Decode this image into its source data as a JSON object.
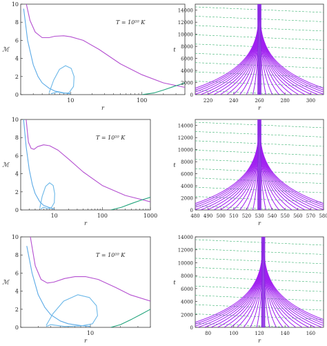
{
  "chart_data": [
    {
      "type": "line",
      "xlabel": "r",
      "ylabel": "ℳ",
      "annotation": "T = 10¹⁰ K",
      "xscale": "log",
      "xlim": [
        2,
        400
      ],
      "ylim": [
        0,
        10
      ],
      "yticks": [
        "0",
        "2",
        "4",
        "6",
        "8",
        "10"
      ],
      "xticks": [
        {
          "v": 10,
          "label": "10"
        },
        {
          "v": 100,
          "label": "100"
        }
      ],
      "grid": false,
      "colors": {
        "left_branch": "#5aa9e6",
        "right_branch": "#b44fd0",
        "loop": "#6ab7e8",
        "green": "#1fa37a"
      },
      "series": [
        {
          "values": [
            [
              2.2,
              9.5
            ],
            [
              2.5,
              6.0
            ],
            [
              3.0,
              3.3
            ],
            [
              3.5,
              2.0
            ],
            [
              4.0,
              1.3
            ],
            [
              5.0,
              0.7
            ],
            [
              6.0,
              0.4
            ],
            [
              8.0,
              0.2
            ],
            [
              10.0,
              0.1
            ]
          ]
        },
        {
          "values": [
            [
              2.4,
              10.0
            ],
            [
              2.7,
              8.2
            ],
            [
              3.2,
              6.9
            ],
            [
              4.0,
              6.3
            ],
            [
              5.0,
              6.3
            ],
            [
              6.0,
              6.45
            ],
            [
              8.0,
              6.5
            ],
            [
              10.0,
              6.4
            ],
            [
              15.0,
              6.0
            ],
            [
              25.0,
              5.0
            ],
            [
              50.0,
              3.4
            ],
            [
              100.0,
              2.2
            ],
            [
              200.0,
              1.3
            ],
            [
              400.0,
              0.8
            ]
          ]
        },
        {
          "values": [
            [
              5.0,
              0.2
            ],
            [
              5.8,
              1.6
            ],
            [
              7.0,
              2.8
            ],
            [
              8.5,
              3.2
            ],
            [
              10.2,
              2.9
            ],
            [
              11.2,
              2.0
            ],
            [
              11.0,
              0.9
            ],
            [
              9.5,
              0.2
            ],
            [
              8.0,
              0.15
            ],
            [
              6.5,
              0.3
            ],
            [
              5.3,
              0.1
            ]
          ]
        },
        {
          "values": [
            [
              100.0,
              0.0
            ],
            [
              150.0,
              0.2
            ],
            [
              200.0,
              0.5
            ],
            [
              280.0,
              0.9
            ],
            [
              400.0,
              1.3
            ]
          ]
        }
      ]
    },
    {
      "type": "line",
      "xlabel": "r",
      "ylabel": "t",
      "xlim": [
        210,
        310
      ],
      "ylim": [
        0,
        15000
      ],
      "xticks": [
        "220",
        "240",
        "260",
        "280",
        "300"
      ],
      "yticks": [
        "0",
        "2000",
        "4000",
        "6000",
        "8000",
        "10000",
        "12000",
        "14000"
      ],
      "center": 260,
      "description_color": {
        "characteristics": "#a020f0",
        "isochrones": "#3cb371"
      }
    },
    {
      "type": "line",
      "xlabel": "r",
      "ylabel": "ℳ",
      "annotation": "T = 10¹⁰ K",
      "xscale": "log",
      "xlim": [
        2,
        1000
      ],
      "ylim": [
        0,
        10
      ],
      "yticks": [
        "0",
        "2",
        "4",
        "6",
        "8",
        "10"
      ],
      "xticks": [
        {
          "v": 10,
          "label": "10"
        },
        {
          "v": 100,
          "label": "100"
        },
        {
          "v": 1000,
          "label": "1000"
        }
      ],
      "series": [
        {
          "values": [
            [
              2.3,
              10.0
            ],
            [
              2.6,
              7.0
            ],
            [
              3.0,
              4.5
            ],
            [
              3.5,
              2.8
            ],
            [
              4.0,
              1.8
            ],
            [
              5.0,
              0.9
            ],
            [
              6.0,
              0.5
            ],
            [
              8.0,
              0.25
            ],
            [
              10.0,
              0.1
            ]
          ]
        },
        {
          "values": [
            [
              2.6,
              10.0
            ],
            [
              2.9,
              7.5
            ],
            [
              3.3,
              6.8
            ],
            [
              3.8,
              6.7
            ],
            [
              4.5,
              7.0
            ],
            [
              6.0,
              7.2
            ],
            [
              8.0,
              7.1
            ],
            [
              12.0,
              6.6
            ],
            [
              20.0,
              5.6
            ],
            [
              40.0,
              4.2
            ],
            [
              100.0,
              2.7
            ],
            [
              300.0,
              1.6
            ],
            [
              1000.0,
              0.9
            ]
          ]
        },
        {
          "values": [
            [
              5.0,
              0.2
            ],
            [
              5.6,
              1.5
            ],
            [
              6.6,
              2.6
            ],
            [
              8.0,
              3.0
            ],
            [
              9.5,
              2.7
            ],
            [
              10.2,
              1.8
            ],
            [
              10.0,
              0.8
            ],
            [
              8.6,
              0.2
            ],
            [
              7.2,
              0.15
            ],
            [
              6.0,
              0.3
            ],
            [
              5.2,
              0.1
            ]
          ]
        },
        {
          "values": [
            [
              150.0,
              0.0
            ],
            [
              250.0,
              0.3
            ],
            [
              400.0,
              0.7
            ],
            [
              650.0,
              1.1
            ],
            [
              1000.0,
              1.4
            ]
          ]
        }
      ]
    },
    {
      "type": "line",
      "xlabel": "r",
      "ylabel": "t",
      "xlim": [
        480,
        580
      ],
      "ylim": [
        0,
        15000
      ],
      "xticks": [
        "480",
        "490",
        "500",
        "510",
        "520",
        "530",
        "540",
        "550",
        "560",
        "570",
        "580"
      ],
      "yticks": [
        "0",
        "2000",
        "4000",
        "6000",
        "8000",
        "10000",
        "12000",
        "14000"
      ],
      "center": 530
    },
    {
      "type": "line",
      "xlabel": "r",
      "ylabel": "ℳ",
      "annotation": "T = 10¹⁰ K",
      "xscale": "log",
      "xlim": [
        2,
        40
      ],
      "ylim": [
        0,
        10
      ],
      "yticks": [
        "0",
        "2",
        "4",
        "6",
        "8",
        "10"
      ],
      "xticks": [
        {
          "v": 10,
          "label": "10"
        }
      ],
      "series": [
        {
          "values": [
            [
              2.3,
              9.0
            ],
            [
              2.6,
              6.0
            ],
            [
              3.0,
              3.6
            ],
            [
              3.5,
              2.2
            ],
            [
              4.0,
              1.4
            ],
            [
              5.0,
              0.7
            ],
            [
              6.0,
              0.4
            ],
            [
              8.0,
              0.2
            ],
            [
              10.0,
              0.1
            ]
          ]
        },
        {
          "values": [
            [
              2.5,
              10.0
            ],
            [
              2.8,
              6.8
            ],
            [
              3.2,
              5.3
            ],
            [
              3.7,
              4.9
            ],
            [
              4.3,
              5.0
            ],
            [
              5.5,
              5.4
            ],
            [
              7.0,
              5.6
            ],
            [
              9.0,
              5.6
            ],
            [
              12.0,
              5.3
            ],
            [
              18.0,
              4.4
            ],
            [
              25.0,
              3.6
            ],
            [
              40.0,
              2.9
            ]
          ]
        },
        {
          "values": [
            [
              3.6,
              0.2
            ],
            [
              4.2,
              1.5
            ],
            [
              5.4,
              2.9
            ],
            [
              7.5,
              3.6
            ],
            [
              9.8,
              3.3
            ],
            [
              11.5,
              2.4
            ],
            [
              11.8,
              1.3
            ],
            [
              10.5,
              0.4
            ],
            [
              8.0,
              0.15
            ],
            [
              5.5,
              0.1
            ],
            [
              4.0,
              0.3
            ],
            [
              3.6,
              0.1
            ]
          ]
        },
        {
          "values": [
            [
              16.0,
              0.0
            ],
            [
              20.0,
              0.3
            ],
            [
              26.0,
              0.9
            ],
            [
              33.0,
              1.5
            ],
            [
              40.0,
              2.0
            ]
          ]
        }
      ]
    },
    {
      "type": "line",
      "xlabel": "r",
      "ylabel": "t",
      "xlim": [
        70,
        170
      ],
      "ylim": [
        0,
        14000
      ],
      "xticks": [
        "80",
        "100",
        "120",
        "140",
        "160"
      ],
      "yticks": [
        "0",
        "2000",
        "4000",
        "6000",
        "8000",
        "10000",
        "12000",
        "14000"
      ],
      "center": 123
    }
  ]
}
